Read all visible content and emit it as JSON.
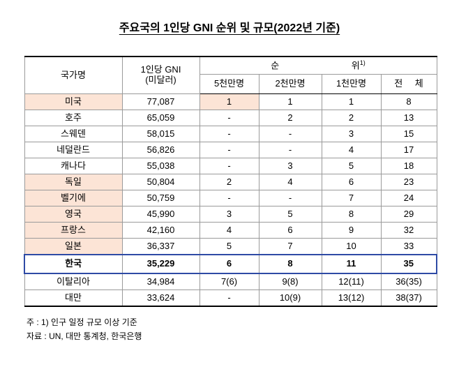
{
  "title": "주요국의 1인당 GNI 순위 및 규모(2022년 기준)",
  "table": {
    "headers": {
      "country": "국가명",
      "gni_line1": "1인당 GNI",
      "gni_line2": "(미달러)",
      "rank_label": "순 위",
      "rank_footnote": "1)",
      "sub": [
        "5천만명",
        "2천만명",
        "1천만명",
        "전 체"
      ]
    },
    "rows": [
      {
        "country": "미국",
        "gni": "77,087",
        "r50": "1",
        "r20": "1",
        "r10": "1",
        "total": "8"
      },
      {
        "country": "호주",
        "gni": "65,059",
        "r50": "-",
        "r20": "2",
        "r10": "2",
        "total": "13"
      },
      {
        "country": "스웨덴",
        "gni": "58,015",
        "r50": "-",
        "r20": "-",
        "r10": "3",
        "total": "15"
      },
      {
        "country": "네덜란드",
        "gni": "56,826",
        "r50": "-",
        "r20": "-",
        "r10": "4",
        "total": "17"
      },
      {
        "country": "캐나다",
        "gni": "55,038",
        "r50": "-",
        "r20": "3",
        "r10": "5",
        "total": "18"
      },
      {
        "country": "독일",
        "gni": "50,804",
        "r50": "2",
        "r20": "4",
        "r10": "6",
        "total": "23"
      },
      {
        "country": "벨기에",
        "gni": "50,759",
        "r50": "-",
        "r20": "-",
        "r10": "7",
        "total": "24"
      },
      {
        "country": "영국",
        "gni": "45,990",
        "r50": "3",
        "r20": "5",
        "r10": "8",
        "total": "29"
      },
      {
        "country": "프랑스",
        "gni": "42,160",
        "r50": "4",
        "r20": "6",
        "r10": "9",
        "total": "32"
      },
      {
        "country": "일본",
        "gni": "36,337",
        "r50": "5",
        "r20": "7",
        "r10": "10",
        "total": "33"
      },
      {
        "country": "한국",
        "gni": "35,229",
        "r50": "6",
        "r20": "8",
        "r10": "11",
        "total": "35"
      },
      {
        "country": "이탈리아",
        "gni": "34,984",
        "r50": "7(6)",
        "r20": "9(8)",
        "r10": "12(11)",
        "total": "36(35)"
      },
      {
        "country": "대만",
        "gni": "33,624",
        "r50": "-",
        "r20": "10(9)",
        "r10": "13(12)",
        "total": "38(37)"
      }
    ]
  },
  "notes": [
    "주 : 1) 인구 일정 규모 이상 기준",
    "자료 : UN, 대만 통계청, 한국은행"
  ],
  "colors": {
    "highlight": "#fce4d6",
    "korea_border": "#2e4aa5",
    "grid": "#9a9a9a"
  }
}
